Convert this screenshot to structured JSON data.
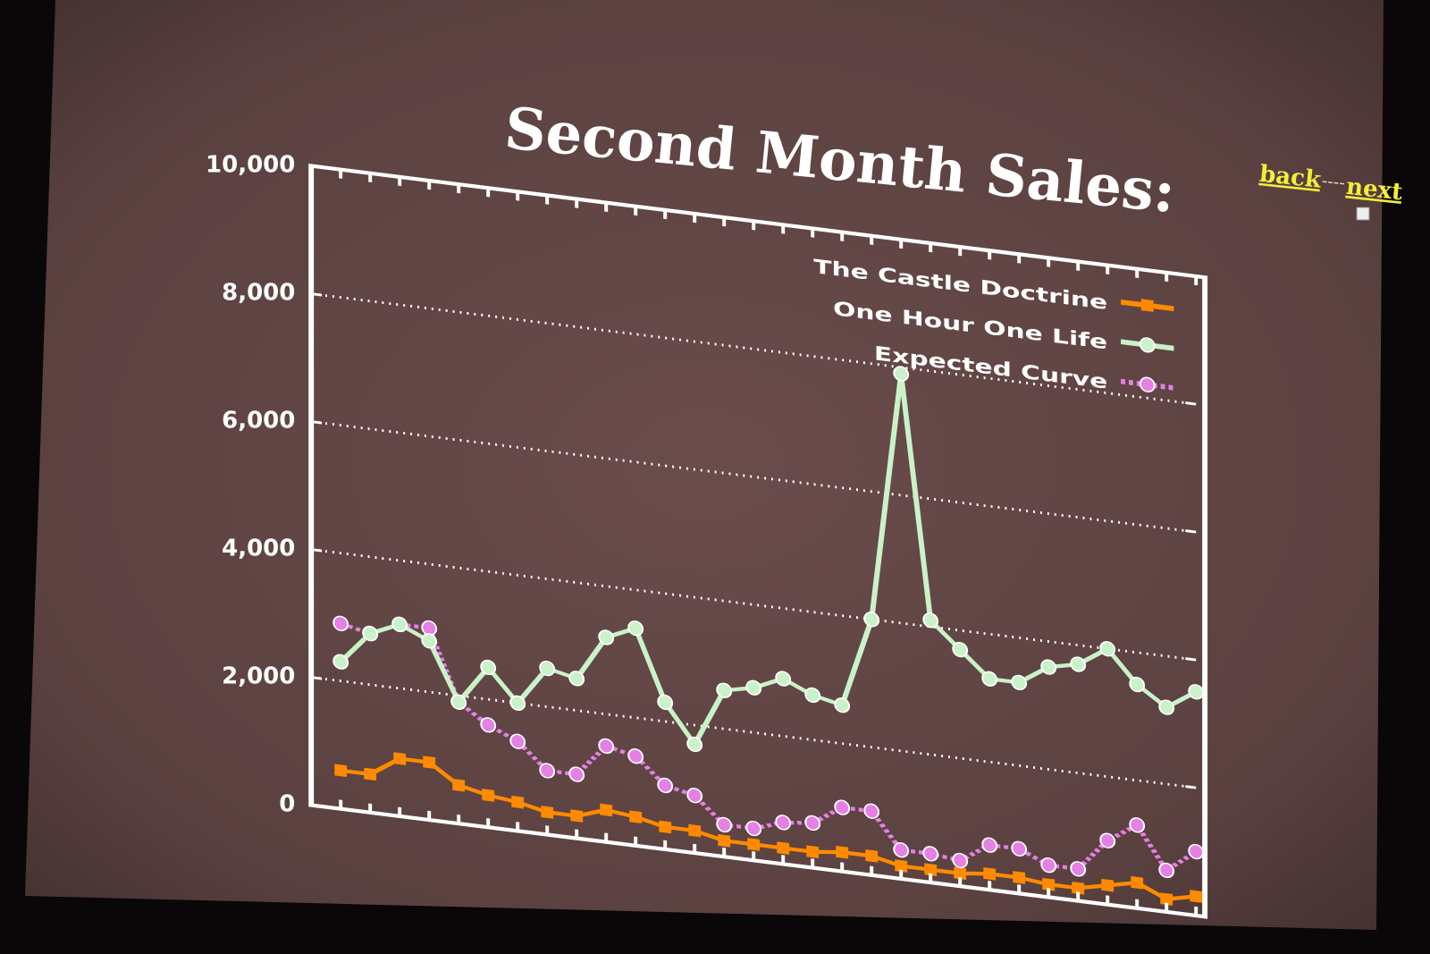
{
  "nav": {
    "back_label": "back",
    "separator": "----",
    "next_label": "next"
  },
  "colors": {
    "slide_background": "#5f4443",
    "axes": "#ffffff",
    "castle_doctrine": "#ff8a00",
    "one_hour_one_life": "#c9f2c9",
    "expected_curve": "#e580e5",
    "nav_link": "#f2ee3a"
  },
  "chart_data": {
    "type": "line",
    "title": "Second Month Sales:",
    "xlabel": "",
    "ylabel": "",
    "ylim": [
      0,
      10000
    ],
    "yticks": [
      0,
      2000,
      4000,
      6000,
      8000,
      10000
    ],
    "ytick_labels": [
      "0",
      "2,000",
      "4,000",
      "6,000",
      "8,000",
      "10,000"
    ],
    "xlim": [
      0,
      30
    ],
    "x": [
      1,
      2,
      3,
      4,
      5,
      6,
      7,
      8,
      9,
      10,
      11,
      12,
      13,
      14,
      15,
      16,
      17,
      18,
      19,
      20,
      21,
      22,
      23,
      24,
      25,
      26,
      27,
      28,
      29,
      30
    ],
    "grid": "horizontal dotted",
    "legend_position": "top-right",
    "series": [
      {
        "name": "The Castle Doctrine",
        "color": "#ff8a00",
        "marker": "square",
        "values": [
          600,
          600,
          900,
          900,
          600,
          500,
          450,
          350,
          350,
          500,
          450,
          350,
          350,
          250,
          250,
          250,
          250,
          300,
          300,
          200,
          200,
          200,
          250,
          250,
          200,
          200,
          300,
          400,
          200,
          300
        ]
      },
      {
        "name": "One Hour One Life",
        "color": "#c9f2c9",
        "marker": "circle",
        "values": [
          2300,
          2800,
          3000,
          2800,
          1900,
          2500,
          2000,
          2600,
          2500,
          3200,
          3400,
          2300,
          1700,
          2600,
          2700,
          2900,
          2700,
          2600,
          4000,
          7900,
          4100,
          3700,
          3300,
          3300,
          3600,
          3700,
          4000,
          3500,
          3200,
          3500
        ]
      },
      {
        "name": "Expected Curve",
        "color": "#e580e5",
        "marker": "circle",
        "dashed": true,
        "values": [
          2900,
          2800,
          3000,
          3000,
          1900,
          1600,
          1400,
          1000,
          1000,
          1500,
          1400,
          1000,
          900,
          500,
          500,
          650,
          700,
          1000,
          1000,
          450,
          450,
          400,
          700,
          700,
          500,
          500,
          1000,
          1300,
          650,
          1000
        ]
      }
    ]
  }
}
